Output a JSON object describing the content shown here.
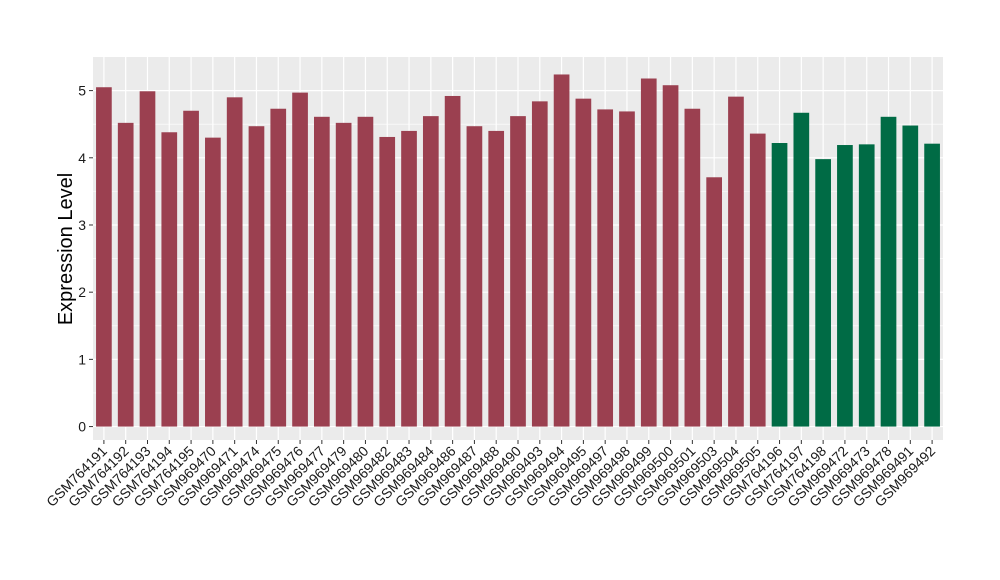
{
  "chart_data": {
    "type": "bar",
    "title": "",
    "xlabel": "",
    "ylabel": "Expression Level",
    "ylim": [
      -0.2,
      5.5
    ],
    "yticks": [
      0,
      1,
      2,
      3,
      4,
      5
    ],
    "grid": true,
    "categories": [
      "GSM764191",
      "GSM764192",
      "GSM764193",
      "GSM764194",
      "GSM764195",
      "GSM969470",
      "GSM969471",
      "GSM969474",
      "GSM969475",
      "GSM969476",
      "GSM969477",
      "GSM969479",
      "GSM969480",
      "GSM969482",
      "GSM969483",
      "GSM969484",
      "GSM969486",
      "GSM969487",
      "GSM969488",
      "GSM969490",
      "GSM969493",
      "GSM969494",
      "GSM969495",
      "GSM969497",
      "GSM969498",
      "GSM969499",
      "GSM969500",
      "GSM969501",
      "GSM969503",
      "GSM969504",
      "GSM969505",
      "GSM764196",
      "GSM764197",
      "GSM764198",
      "GSM969472",
      "GSM969473",
      "GSM969478",
      "GSM969491",
      "GSM969492"
    ],
    "values": [
      5.05,
      4.52,
      4.99,
      4.38,
      4.7,
      4.3,
      4.9,
      4.47,
      4.73,
      4.97,
      4.61,
      4.52,
      4.61,
      4.31,
      4.4,
      4.62,
      4.92,
      4.47,
      4.4,
      4.62,
      4.84,
      5.24,
      4.88,
      4.72,
      4.69,
      5.18,
      5.08,
      4.73,
      3.71,
      4.91,
      4.36,
      4.22,
      4.67,
      3.98,
      4.19,
      4.2,
      4.61,
      4.48,
      4.21
    ],
    "groups": [
      "a",
      "a",
      "a",
      "a",
      "a",
      "a",
      "a",
      "a",
      "a",
      "a",
      "a",
      "a",
      "a",
      "a",
      "a",
      "a",
      "a",
      "a",
      "a",
      "a",
      "a",
      "a",
      "a",
      "a",
      "a",
      "a",
      "a",
      "a",
      "a",
      "a",
      "a",
      "b",
      "b",
      "b",
      "b",
      "b",
      "b",
      "b",
      "b"
    ],
    "colors": {
      "a": "#9b4050",
      "b": "#006b45",
      "panel": "#ebebeb",
      "grid": "#ffffff"
    }
  }
}
